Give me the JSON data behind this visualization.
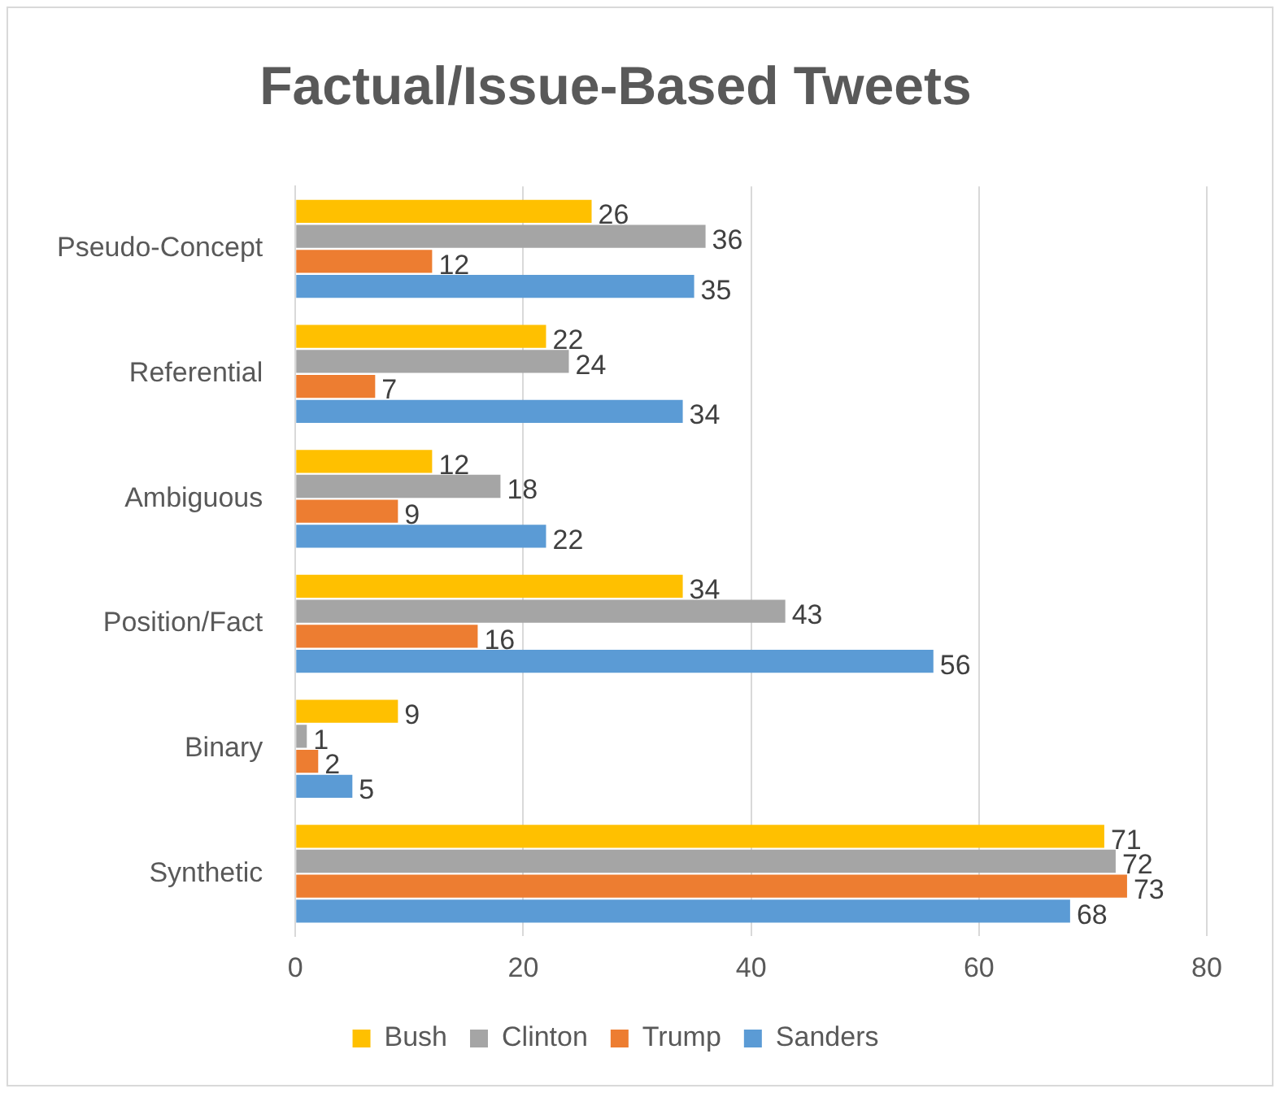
{
  "chart_data": {
    "type": "bar",
    "title": "Factual/Issue-Based Tweets",
    "orientation": "horizontal",
    "categories": [
      "Pseudo-Concept",
      "Referential",
      "Ambiguous",
      "Position/Fact",
      "Binary",
      "Synthetic"
    ],
    "series": [
      {
        "name": "Bush",
        "color": "#ffc000",
        "values": [
          26,
          22,
          12,
          34,
          9,
          71
        ]
      },
      {
        "name": "Clinton",
        "color": "#a5a5a5",
        "values": [
          36,
          24,
          18,
          43,
          1,
          72
        ]
      },
      {
        "name": "Trump",
        "color": "#ed7d31",
        "values": [
          12,
          7,
          9,
          16,
          2,
          73
        ]
      },
      {
        "name": "Sanders",
        "color": "#5b9bd5",
        "values": [
          35,
          34,
          22,
          56,
          5,
          68
        ]
      }
    ],
    "xlim": [
      0,
      80
    ],
    "xticks": [
      0,
      20,
      40,
      60,
      80
    ],
    "grid": "x",
    "legend": "bottom",
    "data_labels": true
  }
}
